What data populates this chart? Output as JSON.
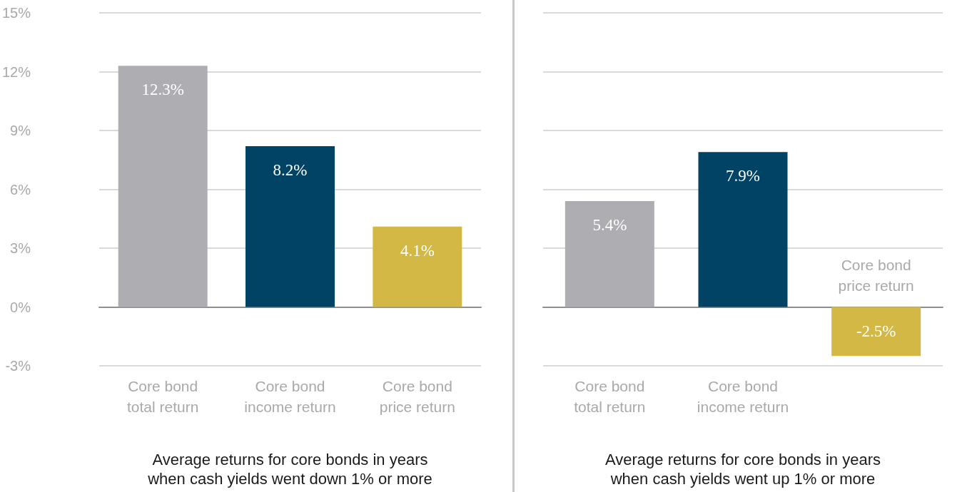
{
  "chart_data": [
    {
      "type": "bar",
      "xlabel": "Average returns for core bonds in years when cash yields went down 1% or more",
      "categories": [
        "Core bond total return",
        "Core bond income return",
        "Core bond price return"
      ],
      "values": [
        12.3,
        8.2,
        4.1
      ],
      "value_labels": [
        "12.3%",
        "8.2%",
        "4.1%"
      ],
      "colors": [
        "#aeadb2",
        "#004364",
        "#d4b846"
      ],
      "ylim": [
        -3,
        15
      ],
      "yticks": [
        {
          "value": -3,
          "label": "-3%"
        },
        {
          "value": 0,
          "label": "0%"
        },
        {
          "value": 3,
          "label": "3%"
        },
        {
          "value": 6,
          "label": "6%"
        },
        {
          "value": 9,
          "label": "9%"
        },
        {
          "value": 12,
          "label": "12%"
        },
        {
          "value": 15,
          "label": "15%"
        }
      ],
      "grid": "y"
    },
    {
      "type": "bar",
      "xlabel": "Average returns for core bonds in years when cash yields went up 1% or more",
      "categories": [
        "Core bond total return",
        "Core bond income return",
        "Core bond price return"
      ],
      "values": [
        5.4,
        7.9,
        -2.5
      ],
      "value_labels": [
        "5.4%",
        "7.9%",
        "-2.5%"
      ],
      "colors": [
        "#aeadb2",
        "#004364",
        "#d4b846"
      ],
      "ylim": [
        -3,
        15
      ],
      "yticks": [
        -3,
        0,
        3,
        6,
        9,
        12,
        15
      ],
      "grid": "y",
      "tick_labels": "x"
    }
  ]
}
